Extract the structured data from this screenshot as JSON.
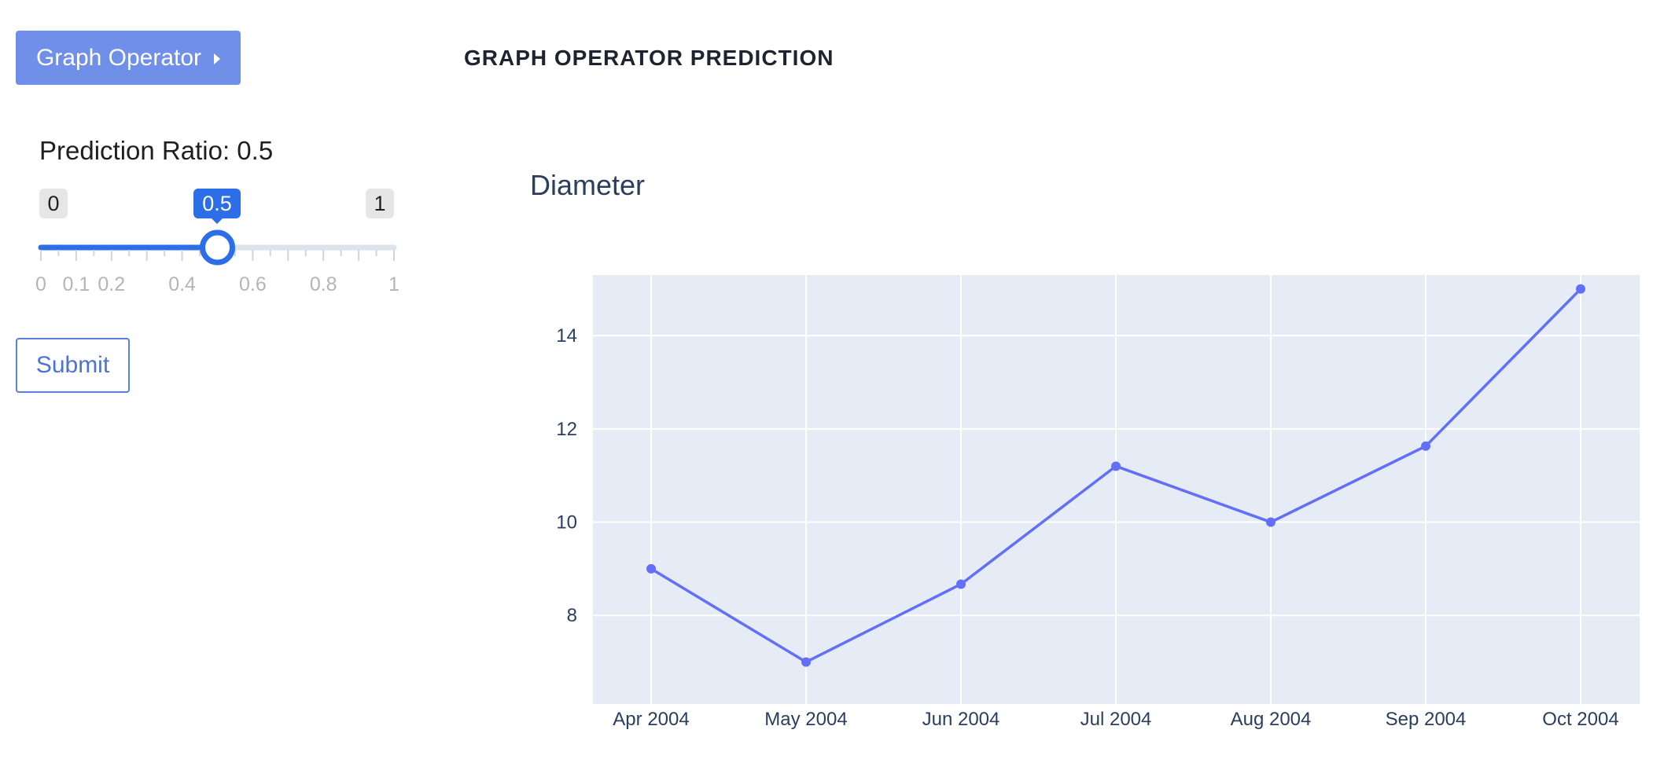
{
  "header": {
    "operator_button_label": "Graph Operator",
    "page_title": "GRAPH OPERATOR PREDICTION"
  },
  "controls": {
    "ratio_label": "Prediction Ratio:",
    "ratio_value": "0.5",
    "slider": {
      "min": 0,
      "max": 1,
      "value": 0.5,
      "min_label": "0",
      "max_label": "1",
      "value_label": "0.5",
      "tick_labels": [
        "0",
        "0.1",
        "0.2",
        "0.4",
        "0.6",
        "0.8",
        "1"
      ],
      "tick_values": [
        0,
        0.1,
        0.2,
        0.4,
        0.6,
        0.8,
        1
      ],
      "accent_color": "#2c6ee8"
    },
    "submit_label": "Submit"
  },
  "chart_data": {
    "type": "line",
    "title": "Diameter",
    "xlabel": "",
    "ylabel": "",
    "x": [
      "Apr 2004",
      "May 2004",
      "Jun 2004",
      "Jul 2004",
      "Aug 2004",
      "Sep 2004",
      "Oct 2004"
    ],
    "series": [
      {
        "values": [
          9.0,
          7.0,
          8.67,
          11.2,
          10.0,
          11.63,
          15.0
        ]
      }
    ],
    "ylim": [
      6.1,
      15.3
    ],
    "yticks": [
      8,
      10,
      12,
      14
    ],
    "grid": true,
    "line_color": "#636efa",
    "plot_bg_color": "#e5ecf6"
  }
}
